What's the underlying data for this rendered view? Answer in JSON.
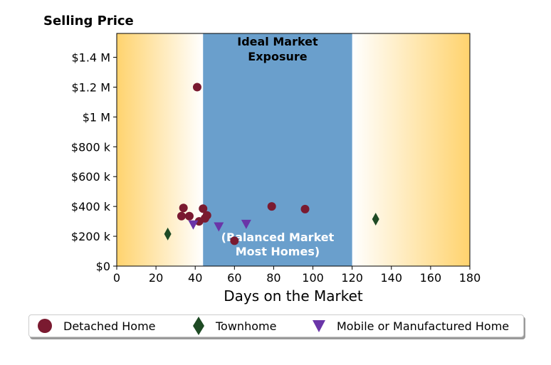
{
  "colors": {
    "detached": "#7a1a30",
    "townhome": "#1e4a24",
    "mobile": "#6a35a8",
    "ideal_band": "#6a9fcc",
    "edge_gradient": "#ffd36e",
    "white_text": "#ffffff"
  },
  "chart_data": {
    "type": "scatter",
    "title": "Selling Price",
    "xlabel": "Days on the Market",
    "ylabel": "",
    "xlim": [
      0,
      180
    ],
    "ylim": [
      0,
      1560000
    ],
    "x_ticks": [
      0,
      20,
      40,
      60,
      80,
      100,
      120,
      140,
      160,
      180
    ],
    "y_ticks": [
      {
        "value": 0,
        "label": "$0"
      },
      {
        "value": 200000,
        "label": "$200 k"
      },
      {
        "value": 400000,
        "label": "$400 k"
      },
      {
        "value": 600000,
        "label": "$600 k"
      },
      {
        "value": 800000,
        "label": "$800 k"
      },
      {
        "value": 1000000,
        "label": "$1 M"
      },
      {
        "value": 1200000,
        "label": "$1.2 M"
      },
      {
        "value": 1400000,
        "label": "$1.4 M"
      }
    ],
    "bands": [
      {
        "x_from": 44,
        "x_to": 120,
        "label_top": [
          "Ideal Market",
          "Exposure"
        ],
        "label_bottom": [
          "(Balanced Market",
          "Most Homes)"
        ]
      }
    ],
    "series": [
      {
        "name": "Detached Home",
        "marker": "circle",
        "color": "#7a1a30",
        "points": [
          [
            41,
            1200000
          ],
          [
            33,
            335000
          ],
          [
            34,
            390000
          ],
          [
            37,
            335000
          ],
          [
            42,
            300000
          ],
          [
            44,
            385000
          ],
          [
            45,
            320000
          ],
          [
            46,
            340000
          ],
          [
            60,
            170000
          ],
          [
            79,
            400000
          ],
          [
            96,
            382000
          ]
        ]
      },
      {
        "name": "Townhome",
        "marker": "diamond",
        "color": "#1e4a24",
        "points": [
          [
            26,
            215000
          ],
          [
            132,
            315000
          ]
        ]
      },
      {
        "name": "Mobile or Manufactured Home",
        "marker": "triangle-down",
        "color": "#6a35a8",
        "points": [
          [
            39,
            278000
          ],
          [
            52,
            265000
          ],
          [
            66,
            282000
          ]
        ]
      }
    ],
    "legend_position": "bottom",
    "grid": false
  }
}
